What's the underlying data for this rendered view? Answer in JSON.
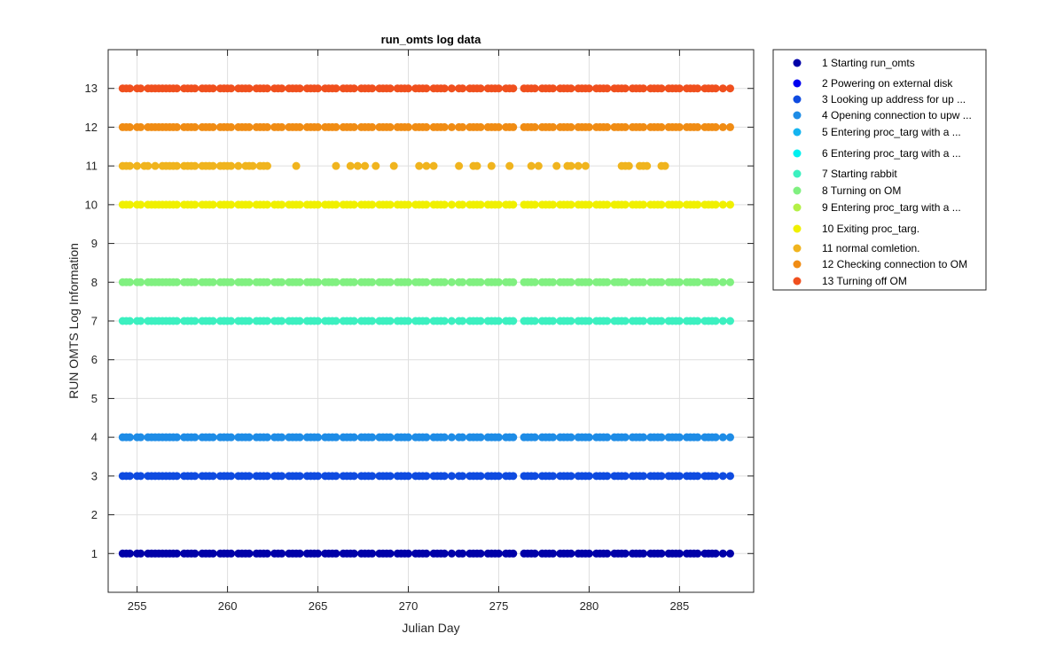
{
  "chart_data": {
    "type": "scatter",
    "title": "run_omts log data",
    "xlabel": "Julian Day",
    "ylabel": "RUN OMTS Log Information",
    "xlim": [
      253.4,
      289.1
    ],
    "ylim": [
      0,
      14
    ],
    "xticks": [
      255,
      260,
      265,
      270,
      275,
      280,
      285
    ],
    "yticks": [
      1,
      2,
      3,
      4,
      5,
      6,
      7,
      8,
      9,
      10,
      11,
      12,
      13
    ],
    "grid": true,
    "legend_position": "outside-top-right",
    "x": [
      254.2,
      254.4,
      254.6,
      255.0,
      255.2,
      255.6,
      255.8,
      256.0,
      256.2,
      256.4,
      256.6,
      256.8,
      257.0,
      257.2,
      257.6,
      257.8,
      258.0,
      258.2,
      258.6,
      258.8,
      259.0,
      259.2,
      259.6,
      259.8,
      260.0,
      260.2,
      260.6,
      260.8,
      261.0,
      261.2,
      261.6,
      261.8,
      262.0,
      262.2,
      262.6,
      262.8,
      263.0,
      263.4,
      263.6,
      263.8,
      264.0,
      264.4,
      264.6,
      264.8,
      265.0,
      265.4,
      265.6,
      265.8,
      266.0,
      266.4,
      266.6,
      266.8,
      267.0,
      267.4,
      267.6,
      267.8,
      268.0,
      268.4,
      268.6,
      268.8,
      269.0,
      269.4,
      269.6,
      269.8,
      270.0,
      270.4,
      270.6,
      270.8,
      271.0,
      271.4,
      271.6,
      271.8,
      272.0,
      272.4,
      272.8,
      273.0,
      273.4,
      273.6,
      273.8,
      274.0,
      274.4,
      274.6,
      274.8,
      275.0,
      275.4,
      275.6,
      275.8,
      276.4,
      276.6,
      276.8,
      277.0,
      277.4,
      277.6,
      277.8,
      278.0,
      278.4,
      278.6,
      278.8,
      279.0,
      279.4,
      279.6,
      279.8,
      280.0,
      280.4,
      280.6,
      280.8,
      281.0,
      281.4,
      281.6,
      281.8,
      282.0,
      282.4,
      282.6,
      282.8,
      283.0,
      283.4,
      283.6,
      283.8,
      284.0,
      284.4,
      284.6,
      284.8,
      285.0,
      285.4,
      285.6,
      285.8,
      286.0,
      286.4,
      286.6,
      286.8,
      287.0,
      287.4,
      287.8
    ],
    "series": [
      {
        "name": "1 Starting run_omts",
        "y": 1,
        "color": "#0000a8"
      },
      {
        "name": "2 Powering on external disk",
        "y": 2,
        "color": "#0000f0",
        "points": []
      },
      {
        "name": "3 Looking up address for up ...",
        "y": 3,
        "color": "#0f4be0"
      },
      {
        "name": "4 Opening connection to upw ...",
        "y": 4,
        "color": "#1e8ce6"
      },
      {
        "name": "5 Entering proc_targ with a ...",
        "y": 5,
        "color": "#14b4f0",
        "points": []
      },
      {
        "name": "6 Entering proc_targ with a ...",
        "y": 6,
        "color": "#00f0f0",
        "points": []
      },
      {
        "name": "7 Starting rabbit",
        "y": 7,
        "color": "#3cf0c0"
      },
      {
        "name": "8 Turning on OM",
        "y": 8,
        "color": "#80f080"
      },
      {
        "name": "9 Entering proc_targ with a ...",
        "y": 9,
        "color": "#b4f046",
        "points": []
      },
      {
        "name": "10 Exiting proc_targ.",
        "y": 10,
        "color": "#f0f000"
      },
      {
        "name": "11 normal comletion.",
        "y": 11,
        "color": "#f0b41e",
        "points": [
          254.2,
          254.4,
          254.6,
          255.0,
          255.4,
          255.6,
          256.0,
          256.4,
          256.6,
          256.8,
          257.0,
          257.2,
          257.6,
          257.8,
          258.0,
          258.2,
          258.6,
          258.8,
          259.0,
          259.2,
          259.6,
          259.8,
          260.0,
          260.2,
          260.6,
          261.0,
          261.2,
          261.4,
          261.8,
          262.0,
          262.2,
          263.8,
          266.0,
          266.8,
          267.2,
          267.6,
          268.2,
          269.2,
          270.6,
          271.0,
          271.4,
          272.8,
          273.6,
          273.8,
          274.6,
          275.6,
          276.8,
          277.2,
          278.2,
          278.8,
          279.0,
          279.4,
          279.8,
          281.8,
          282.0,
          282.2,
          282.8,
          283.0,
          283.2,
          284.0,
          284.2
        ]
      },
      {
        "name": "12 Checking connection to OM",
        "y": 12,
        "color": "#f08c14"
      },
      {
        "name": "13 Turning off OM",
        "y": 13,
        "color": "#f0501e"
      }
    ]
  }
}
